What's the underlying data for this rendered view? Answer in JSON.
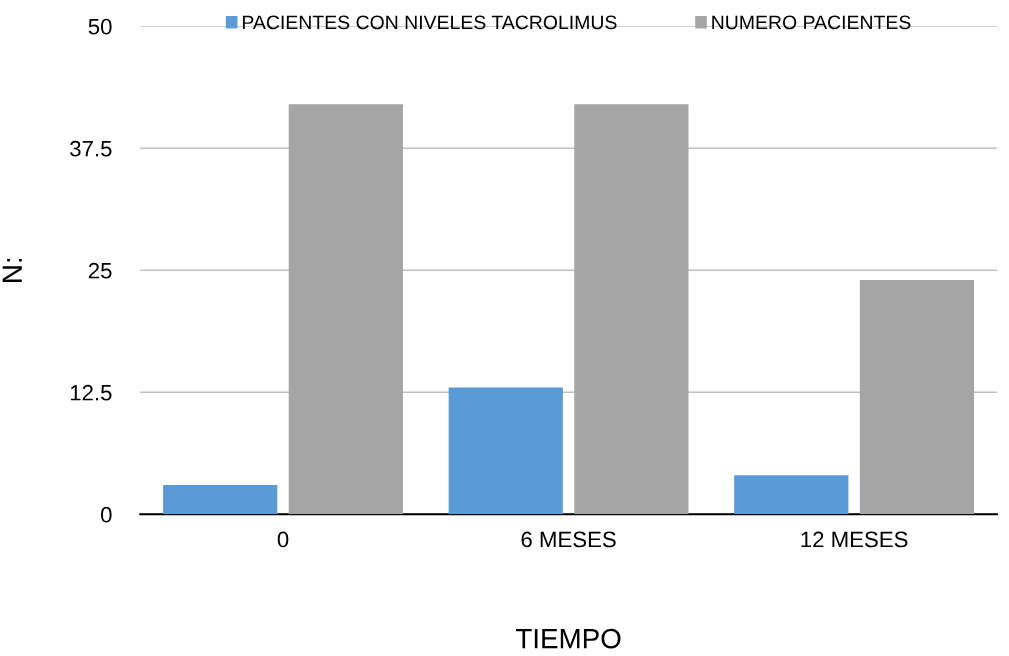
{
  "chart_data": {
    "type": "bar",
    "xlabel": "TIEMPO",
    "ylabel": "N:",
    "categories": [
      "0",
      "6 MESES",
      "12 MESES"
    ],
    "series": [
      {
        "name": "PACIENTES CON NIVELES TACROLIMUS",
        "color": "#5b9bd5",
        "values": [
          3,
          13,
          4
        ]
      },
      {
        "name": "NUMERO PACIENTES",
        "color": "#a5a5a5",
        "values": [
          42,
          42,
          24
        ]
      }
    ],
    "ylim": [
      0,
      50
    ],
    "yticks": [
      0,
      12.5,
      25,
      37.5,
      50
    ],
    "grid": "y",
    "legend": "top"
  }
}
